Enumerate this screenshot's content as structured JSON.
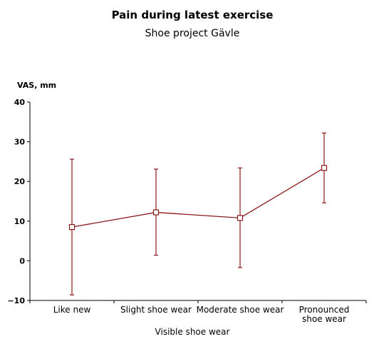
{
  "chart_data": {
    "type": "line",
    "title": "Pain during latest exercise",
    "subtitle": "Shoe project Gävle",
    "ylabel": "VAS, mm",
    "xlabel": "Visible shoe wear",
    "categories": [
      [
        "Like new"
      ],
      [
        "Slight shoe wear"
      ],
      [
        "Moderate shoe wear"
      ],
      [
        "Pronounced",
        "shoe wear"
      ]
    ],
    "yticks": [
      -10,
      0,
      10,
      20,
      30,
      40
    ],
    "ylim": [
      -10,
      40
    ],
    "grid": false,
    "series": [
      {
        "values": [
          8.5,
          12.2,
          10.8,
          23.4
        ],
        "lower": [
          -8.6,
          1.4,
          -1.7,
          14.6
        ],
        "upper": [
          25.6,
          23.1,
          23.4,
          32.2
        ]
      }
    ],
    "colors": {
      "series": "#8b1a1a",
      "axis": "#000000",
      "marker_fill": "#ffffff"
    }
  }
}
